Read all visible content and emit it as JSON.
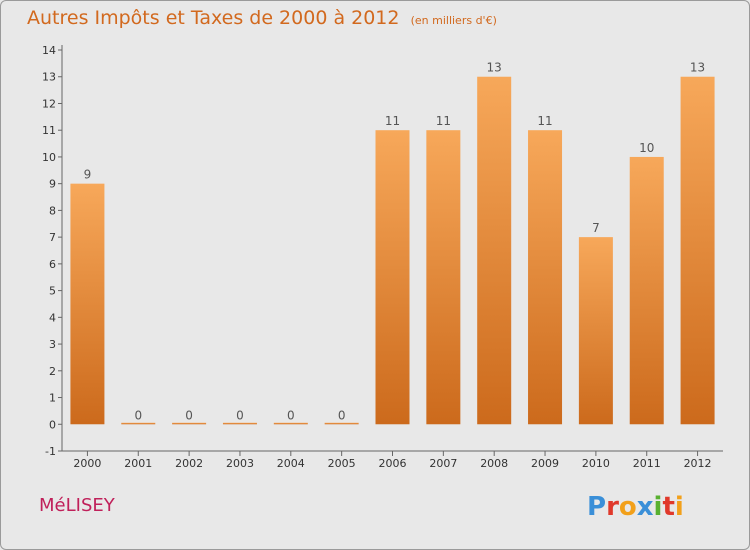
{
  "header": {
    "title": "Autres Impôts et Taxes de 2000 à 2012",
    "unit": "(en milliers d'€)"
  },
  "footer": {
    "commune": "MéLISEY",
    "logo_text": "Proxiti"
  },
  "colors": {
    "bar_top": "#f7a85a",
    "bar_bottom": "#cc6a1c",
    "title": "#d2691e",
    "commune": "#c0205a",
    "background": "#e8e8e8"
  },
  "chart_data": {
    "type": "bar",
    "title": "Autres Impôts et Taxes de 2000 à 2012",
    "subtitle": "(en milliers d'€)",
    "categories": [
      "2000",
      "2001",
      "2002",
      "2003",
      "2004",
      "2005",
      "2006",
      "2007",
      "2008",
      "2009",
      "2010",
      "2011",
      "2012"
    ],
    "values": [
      9,
      0,
      0,
      0,
      0,
      0,
      11,
      11,
      13,
      11,
      7,
      10,
      13
    ],
    "ylim": [
      -1,
      14
    ],
    "yticks": [
      "-1",
      "0",
      "1",
      "2",
      "3",
      "4",
      "5",
      "6",
      "7",
      "8",
      "9",
      "10",
      "11",
      "12",
      "13",
      "14"
    ],
    "grid": false,
    "xlabel": "",
    "ylabel": ""
  }
}
